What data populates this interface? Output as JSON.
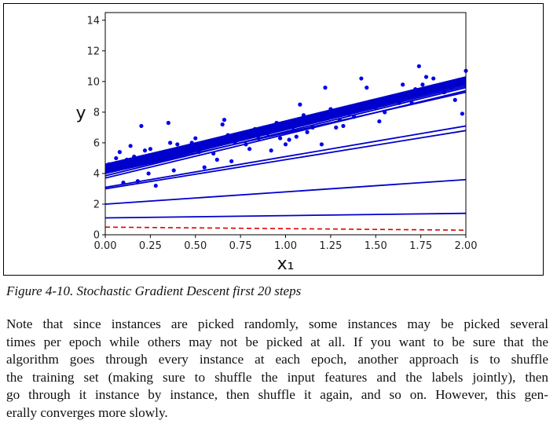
{
  "chart_data": {
    "type": "scatter",
    "title": "",
    "xlabel": "x₁",
    "ylabel": "y",
    "xlim": [
      0,
      2
    ],
    "ylim": [
      0,
      14.5
    ],
    "x_ticks": [
      "0.00",
      "0.25",
      "0.50",
      "0.75",
      "1.00",
      "1.25",
      "1.50",
      "1.75",
      "2.00"
    ],
    "y_ticks": [
      "0",
      "2",
      "4",
      "6",
      "8",
      "10",
      "12",
      "14"
    ],
    "grid": false,
    "point_color": "#0000ee",
    "line_color": "#0000cc",
    "dashed_color": "#dd0000",
    "points": [
      [
        0.02,
        4.6
      ],
      [
        0.04,
        4.4
      ],
      [
        0.06,
        5.0
      ],
      [
        0.08,
        5.4
      ],
      [
        0.1,
        3.4
      ],
      [
        0.12,
        4.9
      ],
      [
        0.14,
        5.8
      ],
      [
        0.16,
        5.1
      ],
      [
        0.18,
        3.5
      ],
      [
        0.2,
        7.1
      ],
      [
        0.22,
        5.5
      ],
      [
        0.24,
        4.0
      ],
      [
        0.25,
        5.6
      ],
      [
        0.28,
        3.2
      ],
      [
        0.3,
        5.3
      ],
      [
        0.33,
        5.1
      ],
      [
        0.35,
        7.3
      ],
      [
        0.36,
        6.0
      ],
      [
        0.38,
        4.2
      ],
      [
        0.4,
        5.9
      ],
      [
        0.42,
        5.6
      ],
      [
        0.45,
        5.7
      ],
      [
        0.48,
        6.0
      ],
      [
        0.5,
        6.3
      ],
      [
        0.52,
        5.4
      ],
      [
        0.55,
        4.4
      ],
      [
        0.57,
        5.8
      ],
      [
        0.6,
        5.3
      ],
      [
        0.62,
        4.9
      ],
      [
        0.65,
        7.2
      ],
      [
        0.66,
        7.5
      ],
      [
        0.68,
        6.5
      ],
      [
        0.7,
        4.8
      ],
      [
        0.72,
        6.0
      ],
      [
        0.75,
        6.4
      ],
      [
        0.78,
        5.9
      ],
      [
        0.8,
        5.6
      ],
      [
        0.83,
        6.9
      ],
      [
        0.85,
        6.3
      ],
      [
        0.88,
        7.0
      ],
      [
        0.9,
        6.6
      ],
      [
        0.92,
        5.5
      ],
      [
        0.95,
        7.3
      ],
      [
        0.97,
        6.3
      ],
      [
        1.0,
        5.9
      ],
      [
        1.02,
        6.2
      ],
      [
        1.04,
        7.0
      ],
      [
        1.06,
        6.4
      ],
      [
        1.08,
        8.5
      ],
      [
        1.1,
        7.8
      ],
      [
        1.12,
        6.7
      ],
      [
        1.15,
        7.0
      ],
      [
        1.18,
        7.5
      ],
      [
        1.2,
        5.9
      ],
      [
        1.22,
        9.6
      ],
      [
        1.25,
        8.2
      ],
      [
        1.28,
        7.0
      ],
      [
        1.3,
        7.5
      ],
      [
        1.32,
        7.1
      ],
      [
        1.35,
        7.9
      ],
      [
        1.38,
        7.7
      ],
      [
        1.4,
        8.4
      ],
      [
        1.42,
        10.2
      ],
      [
        1.45,
        9.6
      ],
      [
        1.47,
        8.7
      ],
      [
        1.5,
        8.3
      ],
      [
        1.52,
        7.4
      ],
      [
        1.55,
        8.0
      ],
      [
        1.58,
        8.7
      ],
      [
        1.6,
        9.0
      ],
      [
        1.63,
        8.6
      ],
      [
        1.65,
        9.8
      ],
      [
        1.68,
        9.2
      ],
      [
        1.7,
        8.6
      ],
      [
        1.72,
        9.5
      ],
      [
        1.74,
        11.0
      ],
      [
        1.76,
        9.8
      ],
      [
        1.78,
        10.3
      ],
      [
        1.82,
        10.2
      ],
      [
        1.85,
        9.4
      ],
      [
        1.88,
        9.3
      ],
      [
        1.92,
        9.6
      ],
      [
        1.94,
        8.8
      ],
      [
        1.96,
        10.1
      ],
      [
        1.98,
        7.9
      ],
      [
        2.0,
        10.7
      ]
    ],
    "lines": [
      {
        "y0": 0.5,
        "y1": 0.3,
        "style": "dashed"
      },
      {
        "y0": 1.1,
        "y1": 1.4,
        "style": "solid"
      },
      {
        "y0": 2.0,
        "y1": 3.6,
        "style": "solid"
      },
      {
        "y0": 3.0,
        "y1": 6.8,
        "style": "solid"
      },
      {
        "y0": 3.1,
        "y1": 7.1,
        "style": "solid"
      },
      {
        "y0": 3.7,
        "y1": 9.4,
        "style": "solid"
      },
      {
        "y0": 3.85,
        "y1": 9.6,
        "style": "solid"
      },
      {
        "y0": 4.0,
        "y1": 9.7,
        "style": "solid"
      },
      {
        "y0": 4.05,
        "y1": 9.8,
        "style": "solid"
      },
      {
        "y0": 4.1,
        "y1": 9.85,
        "style": "solid"
      },
      {
        "y0": 4.15,
        "y1": 9.9,
        "style": "solid"
      },
      {
        "y0": 4.2,
        "y1": 9.95,
        "style": "solid"
      },
      {
        "y0": 4.25,
        "y1": 10.0,
        "style": "solid"
      },
      {
        "y0": 4.3,
        "y1": 10.05,
        "style": "solid"
      },
      {
        "y0": 4.35,
        "y1": 10.1,
        "style": "solid"
      },
      {
        "y0": 4.4,
        "y1": 10.15,
        "style": "solid"
      },
      {
        "y0": 4.45,
        "y1": 10.2,
        "style": "solid"
      },
      {
        "y0": 4.5,
        "y1": 10.25,
        "style": "solid"
      },
      {
        "y0": 4.55,
        "y1": 10.3,
        "style": "solid"
      },
      {
        "y0": 4.6,
        "y1": 10.1,
        "style": "solid"
      },
      {
        "y0": 4.0,
        "y1": 9.3,
        "style": "solid"
      }
    ]
  },
  "caption": "Figure 4-10. Stochastic Gradient Descent first 20 steps",
  "paragraph_lines": [
    "Note that since instances are picked randomly, some instances may be picked several",
    "times per epoch while others may not be picked at all. If you want to be sure that the",
    "algorithm goes through every instance at each epoch, another approach is to shuffle",
    "the training set (making sure to shuffle the input features and the labels jointly), then",
    "go through it instance by instance, then shuffle it again, and so on. However, this gen-",
    "erally converges more slowly."
  ]
}
